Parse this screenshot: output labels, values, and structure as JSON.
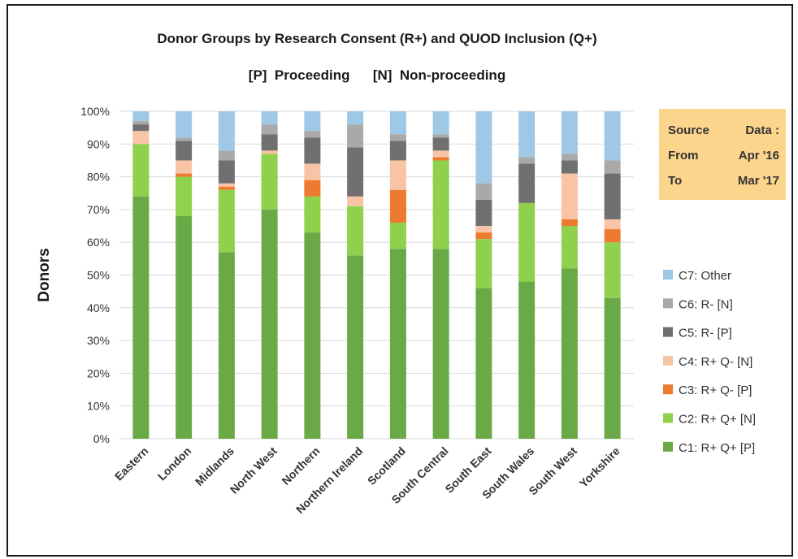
{
  "chart_data": {
    "type": "bar",
    "stacked": true,
    "title": "Donor Groups by Research Consent (R+) and QUOD Inclusion (Q+)",
    "subtitle": "[P]  Proceeding      [N]  Non-proceeding",
    "xlabel": "",
    "ylabel": "Donors",
    "ylim": [
      0,
      100
    ],
    "y_unit": "%",
    "yticks": [
      "0%",
      "10%",
      "20%",
      "30%",
      "40%",
      "50%",
      "60%",
      "70%",
      "80%",
      "90%",
      "100%"
    ],
    "grid": true,
    "legend_position": "right",
    "categories": [
      "Eastern",
      "London",
      "Midlands",
      "North West",
      "Northern",
      "Northern Ireland",
      "Scotland",
      "South Central",
      "South East",
      "South Wales",
      "South West",
      "Yorkshire"
    ],
    "series": [
      {
        "name": "C1: R+ Q+ [P]",
        "color": "#6aaa46",
        "values": [
          74,
          68,
          57,
          70,
          63,
          56,
          58,
          58,
          46,
          48,
          52,
          43
        ]
      },
      {
        "name": "C2: R+ Q+ [N]",
        "color": "#8fd04d",
        "values": [
          16,
          12,
          19,
          17,
          11,
          15,
          8,
          27,
          15,
          24,
          13,
          17
        ]
      },
      {
        "name": "C3: R+ Q- [P]",
        "color": "#ec7a2f",
        "values": [
          0,
          1,
          1,
          0,
          5,
          0,
          10,
          1,
          2,
          0,
          2,
          4
        ]
      },
      {
        "name": "C4: R+ Q- [N]",
        "color": "#f8c4a5",
        "values": [
          4,
          4,
          1,
          1,
          5,
          3,
          9,
          2,
          2,
          0,
          14,
          3
        ]
      },
      {
        "name": "C5: R- [P]",
        "color": "#707070",
        "values": [
          2,
          6,
          7,
          5,
          8,
          15,
          6,
          4,
          8,
          12,
          4,
          14
        ]
      },
      {
        "name": "C6: R- [N]",
        "color": "#a9a9a9",
        "values": [
          1,
          1,
          3,
          3,
          2,
          7,
          2,
          1,
          5,
          2,
          2,
          4
        ]
      },
      {
        "name": "C7: Other",
        "color": "#9fc7e6",
        "values": [
          3,
          8,
          12,
          4,
          6,
          4,
          7,
          7,
          22,
          14,
          13,
          15
        ]
      }
    ],
    "annotation": {
      "lines": [
        [
          "Source",
          "Data :"
        ],
        [
          "From",
          "Apr '16"
        ],
        [
          "To",
          "Mar '17"
        ]
      ],
      "background": "#fcd58c"
    }
  }
}
